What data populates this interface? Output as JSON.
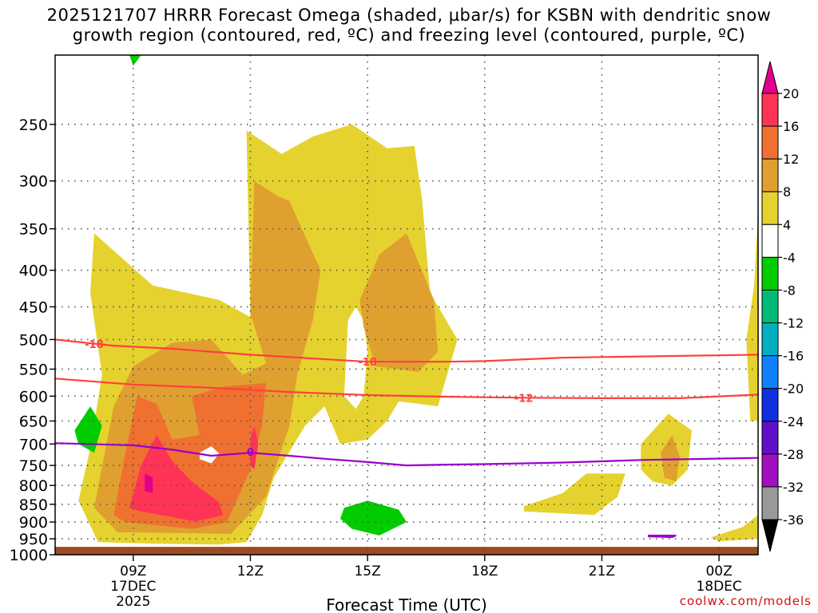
{
  "title": {
    "line1": "2025121707 HRRR Forecast Omega (shaded, µbar/s) for KSBN with dendritic snow",
    "line2": "growth region (contoured, red, ºC) and freezing level (contoured, purple, ºC)"
  },
  "credit": "coolwx.com/models",
  "chart_data": {
    "type": "heatmap",
    "xlabel": "Forecast Time (UTC)",
    "ylabel": "",
    "x_ticks": [
      {
        "hour": 9,
        "label": "09Z",
        "sub1": "17DEC",
        "sub2": "2025"
      },
      {
        "hour": 12,
        "label": "12Z"
      },
      {
        "hour": 15,
        "label": "15Z"
      },
      {
        "hour": 18,
        "label": "18Z"
      },
      {
        "hour": 21,
        "label": "21Z"
      },
      {
        "hour": 24,
        "label": "00Z",
        "sub1": "18DEC"
      }
    ],
    "xlim": [
      7.0,
      25.0
    ],
    "y_ticks": [
      250,
      300,
      350,
      400,
      450,
      500,
      550,
      600,
      650,
      700,
      750,
      800,
      850,
      900,
      950,
      1000
    ],
    "ylim": [
      200,
      1000
    ],
    "y_scale": "log-pressure",
    "grid": true,
    "surface_pressure": 975,
    "colorbar": {
      "levels": [
        "20",
        "16",
        "12",
        "8",
        "4",
        "-4",
        "-8",
        "-12",
        "-16",
        "-20",
        "-24",
        "-28",
        "-32",
        "-36"
      ],
      "colors": [
        "#ff3355",
        "#f07030",
        "#e0a030",
        "#e6d22e",
        "#ffffff",
        "#00cc00",
        "#00bb77",
        "#00b0c0",
        "#1080ff",
        "#1030e0",
        "#6010c8",
        "#a010c0",
        "#999999"
      ],
      "top_color": "#e0008a",
      "bottom_color": "#000000"
    },
    "contours": [
      {
        "name": "dendritic snow growth region -18 °C",
        "label": "-18",
        "color": "#ff4040",
        "points": [
          [
            7.0,
            500
          ],
          [
            8.5,
            510
          ],
          [
            10,
            515
          ],
          [
            12,
            525
          ],
          [
            14,
            533
          ],
          [
            15,
            537
          ],
          [
            17,
            537
          ],
          [
            18,
            536
          ],
          [
            20,
            530
          ],
          [
            22,
            528
          ],
          [
            25,
            525
          ]
        ]
      },
      {
        "name": "dendritic snow growth region -12 °C",
        "label": "-12",
        "color": "#ff4040",
        "points": [
          [
            7.0,
            567
          ],
          [
            9,
            578
          ],
          [
            11,
            584
          ],
          [
            13,
            592
          ],
          [
            15,
            598
          ],
          [
            17,
            601
          ],
          [
            19,
            603
          ],
          [
            21,
            604
          ],
          [
            23,
            604
          ],
          [
            25,
            597
          ]
        ]
      },
      {
        "name": "freezing level 0 °C",
        "label": "0",
        "color": "#9900cc",
        "points": [
          [
            7.0,
            698
          ],
          [
            9,
            703
          ],
          [
            10,
            713
          ],
          [
            11,
            727
          ],
          [
            12,
            720
          ],
          [
            13,
            727
          ],
          [
            14,
            735
          ],
          [
            15,
            742
          ],
          [
            16,
            750
          ],
          [
            17,
            748
          ],
          [
            18,
            747
          ],
          [
            20,
            743
          ],
          [
            22,
            737
          ],
          [
            25,
            732
          ]
        ]
      }
    ],
    "contour_labels": [
      {
        "text": "-18",
        "x": 8.0,
        "y": 507
      },
      {
        "text": "-18",
        "x": 15.0,
        "y": 537
      },
      {
        "text": "-12",
        "x": 19.0,
        "y": 603
      },
      {
        "text": "0",
        "x": 12.0,
        "y": 718
      }
    ],
    "omega_regions": [
      {
        "level": "4",
        "color": "#e6d22e",
        "points": [
          [
            7.6,
            840
          ],
          [
            7.9,
            710
          ],
          [
            8.2,
            560
          ],
          [
            7.9,
            430
          ],
          [
            8.0,
            355
          ],
          [
            9.5,
            420
          ],
          [
            11.2,
            440
          ],
          [
            12,
            465
          ],
          [
            11.9,
            255
          ],
          [
            12.8,
            275
          ],
          [
            13.6,
            260
          ],
          [
            14.6,
            250
          ],
          [
            15.5,
            270
          ],
          [
            16.2,
            268
          ],
          [
            16.4,
            320
          ],
          [
            16.6,
            430
          ],
          [
            17.3,
            500
          ],
          [
            16.8,
            620
          ],
          [
            15.8,
            610
          ],
          [
            15.5,
            650
          ],
          [
            15,
            690
          ],
          [
            14.3,
            700
          ],
          [
            13.9,
            620
          ],
          [
            13.4,
            660
          ],
          [
            12.6,
            780
          ],
          [
            12.3,
            880
          ],
          [
            11.9,
            960
          ],
          [
            11.2,
            968
          ],
          [
            9.5,
            965
          ],
          [
            8.1,
            960
          ]
        ]
      },
      {
        "level": "4",
        "color": "#e6d22e",
        "points": [
          [
            22.0,
            700
          ],
          [
            22.7,
            635
          ],
          [
            23.3,
            670
          ],
          [
            23.2,
            760
          ],
          [
            22.8,
            800
          ],
          [
            22.3,
            790
          ],
          [
            22.0,
            760
          ]
        ]
      },
      {
        "level": "4",
        "color": "#e6d22e",
        "points": [
          [
            19.0,
            855
          ],
          [
            20.0,
            820
          ],
          [
            20.6,
            770
          ],
          [
            21.6,
            770
          ],
          [
            21.4,
            830
          ],
          [
            20.8,
            880
          ],
          [
            19.0,
            870
          ]
        ]
      },
      {
        "level": "4",
        "color": "#e6d22e",
        "points": [
          [
            23.8,
            945
          ],
          [
            24.6,
            915
          ],
          [
            25.0,
            880
          ],
          [
            25.0,
            950
          ],
          [
            24.0,
            958
          ]
        ]
      },
      {
        "level": "4",
        "color": "#e6d22e",
        "points": [
          [
            24.7,
            500
          ],
          [
            24.9,
            420
          ],
          [
            25.0,
            330
          ],
          [
            25.0,
            650
          ],
          [
            24.8,
            650
          ]
        ]
      },
      {
        "level": "-4",
        "color": "#ffffff",
        "points": [
          [
            14.7,
            450
          ],
          [
            14.9,
            470
          ],
          [
            15.0,
            520
          ],
          [
            14.9,
            600
          ],
          [
            14.7,
            625
          ],
          [
            14.4,
            600
          ],
          [
            14.5,
            470
          ]
        ]
      },
      {
        "level": "8",
        "color": "#e0a030",
        "points": [
          [
            8.0,
            860
          ],
          [
            8.5,
            620
          ],
          [
            9.0,
            545
          ],
          [
            10.0,
            505
          ],
          [
            11.0,
            500
          ],
          [
            11.8,
            560
          ],
          [
            12.4,
            540
          ],
          [
            12.0,
            460
          ],
          [
            12.1,
            300
          ],
          [
            12.7,
            315
          ],
          [
            13.0,
            320
          ],
          [
            13.8,
            400
          ],
          [
            13.6,
            470
          ],
          [
            13.2,
            560
          ],
          [
            13.0,
            660
          ],
          [
            12.4,
            830
          ],
          [
            11.5,
            935
          ],
          [
            8.6,
            930
          ]
        ]
      },
      {
        "level": "8",
        "color": "#e0a030",
        "points": [
          [
            14.8,
            440
          ],
          [
            15.3,
            380
          ],
          [
            16.0,
            355
          ],
          [
            16.7,
            440
          ],
          [
            16.8,
            520
          ],
          [
            16.3,
            555
          ],
          [
            15.2,
            545
          ],
          [
            14.9,
            480
          ]
        ]
      },
      {
        "level": "8",
        "color": "#e0a030",
        "points": [
          [
            22.5,
            720
          ],
          [
            22.8,
            680
          ],
          [
            23.0,
            730
          ],
          [
            22.9,
            790
          ],
          [
            22.6,
            780
          ]
        ]
      },
      {
        "level": "12",
        "color": "#f07030",
        "points": [
          [
            8.5,
            880
          ],
          [
            8.8,
            720
          ],
          [
            9.1,
            600
          ],
          [
            9.6,
            615
          ],
          [
            10.0,
            690
          ],
          [
            10.7,
            680
          ],
          [
            10.5,
            600
          ],
          [
            11.3,
            582
          ],
          [
            12.4,
            575
          ],
          [
            12.3,
            660
          ],
          [
            12.0,
            760
          ],
          [
            11.4,
            900
          ],
          [
            10.5,
            920
          ],
          [
            8.8,
            900
          ]
        ]
      },
      {
        "level": "16",
        "color": "#ff3355",
        "points": [
          [
            8.9,
            860
          ],
          [
            9.2,
            750
          ],
          [
            9.6,
            680
          ],
          [
            10.0,
            740
          ],
          [
            10.5,
            790
          ],
          [
            11.2,
            845
          ],
          [
            11.3,
            880
          ],
          [
            10.6,
            898
          ],
          [
            9.2,
            870
          ]
        ]
      },
      {
        "level": "16",
        "color": "#ff3355",
        "points": [
          [
            12.0,
            690
          ],
          [
            12.1,
            660
          ],
          [
            12.2,
            700
          ],
          [
            12.1,
            760
          ],
          [
            12.0,
            750
          ]
        ]
      },
      {
        "level": "20",
        "color": "#e0008a",
        "points": [
          [
            9.3,
            770
          ],
          [
            9.5,
            780
          ],
          [
            9.5,
            820
          ],
          [
            9.3,
            815
          ]
        ]
      },
      {
        "level": "-4",
        "color": "#ffffff",
        "points": [
          [
            10.7,
            720
          ],
          [
            11.0,
            705
          ],
          [
            11.2,
            722
          ],
          [
            11.0,
            745
          ],
          [
            10.7,
            735
          ]
        ]
      },
      {
        "level": "-4",
        "color": "#00cc00",
        "points": [
          [
            7.5,
            670
          ],
          [
            7.9,
            620
          ],
          [
            8.2,
            660
          ],
          [
            8.0,
            720
          ],
          [
            7.6,
            700
          ]
        ]
      },
      {
        "level": "-4",
        "color": "#00cc00",
        "points": [
          [
            14.4,
            860
          ],
          [
            15.0,
            840
          ],
          [
            15.8,
            865
          ],
          [
            16.0,
            900
          ],
          [
            15.3,
            940
          ],
          [
            14.6,
            920
          ],
          [
            14.3,
            890
          ]
        ]
      },
      {
        "level": "-4",
        "color": "#00cc00",
        "points": [
          [
            8.9,
            200
          ],
          [
            9.2,
            200
          ],
          [
            9.0,
            207
          ]
        ]
      }
    ],
    "minor_features": [
      {
        "name": "small 0 °C contour loop",
        "color": "#9900cc",
        "points": [
          [
            22.2,
            940
          ],
          [
            22.9,
            940
          ],
          [
            22.8,
            945
          ],
          [
            22.2,
            943
          ]
        ]
      }
    ]
  }
}
